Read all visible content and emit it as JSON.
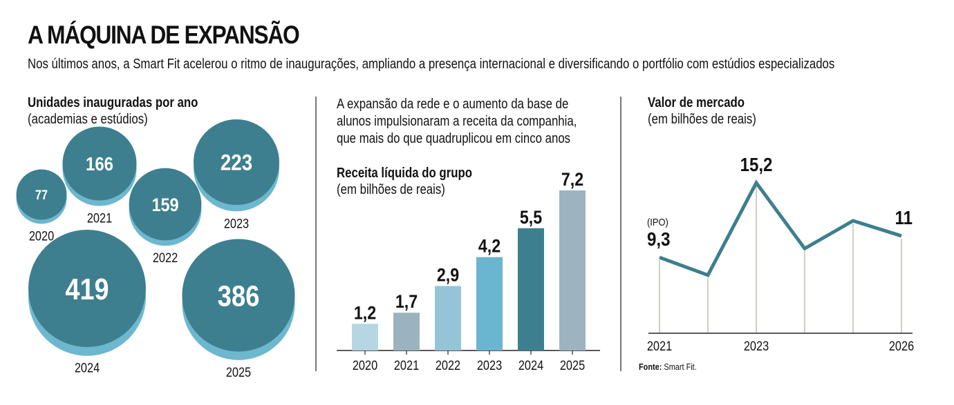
{
  "header": {
    "title": "A MÁQUINA DE EXPANSÃO",
    "subtitle": "Nos últimos anos, a Smart Fit acelerou o ritmo de inaugurações, ampliando a presença internacional e diversificando o portfólio com estúdios especializados"
  },
  "colors": {
    "bubble_front": "#3d7f8e",
    "bubble_shadow": "#6db7cf",
    "line": "#3d7f8e",
    "gridline": "#c9bcb0",
    "axis": "#222222",
    "divider": "#777777"
  },
  "intro_text": [
    "A expansão da rede e o aumento da base de",
    "alunos impulsionaram a receita da companhia,",
    "que mais do que quadruplicou em cinco anos"
  ],
  "source": {
    "label": "Fonte:",
    "text": "Smart Fit."
  },
  "chart_data": [
    {
      "type": "bubble",
      "title": "Unidades inauguradas por ano",
      "subtitle": "(academias e estúdios)",
      "categories": [
        "2020",
        "2021",
        "2022",
        "2023",
        "2024",
        "2025"
      ],
      "values": [
        77,
        166,
        159,
        223,
        419,
        386
      ],
      "labels": [
        "77",
        "166",
        "159",
        "223",
        "419",
        "386"
      ]
    },
    {
      "type": "bar",
      "title": "Receita líquida do grupo",
      "subtitle": "(em bilhões de reais)",
      "categories": [
        "2020",
        "2021",
        "2022",
        "2023",
        "2024",
        "2025"
      ],
      "values": [
        1.2,
        1.7,
        2.9,
        4.2,
        5.5,
        7.2
      ],
      "labels": [
        "1,2",
        "1,7",
        "2,9",
        "4,2",
        "5,5",
        "7,2"
      ],
      "bar_colors": [
        "#b5d6e2",
        "#9bb3bf",
        "#93c5d6",
        "#6ab5cf",
        "#3d7f8e",
        "#9db4c0"
      ],
      "ylim": [
        0,
        7.2
      ],
      "grid": false
    },
    {
      "type": "line",
      "title": "Valor de mercado",
      "subtitle": "(em bilhões de reais)",
      "x": [
        "2021",
        "2022",
        "2023",
        "2024",
        "2025",
        "2026"
      ],
      "values": [
        9.3,
        7.9,
        15.2,
        10.0,
        12.2,
        11.0
      ],
      "tick_labels": [
        "2021",
        "",
        "2023",
        "",
        "",
        "2026"
      ],
      "annotations": [
        {
          "index": 0,
          "note": "(IPO)",
          "label": "9,3"
        },
        {
          "index": 2,
          "label": "15,2"
        },
        {
          "index": 5,
          "label": "11"
        }
      ],
      "ylim": [
        3.3,
        15.2
      ]
    }
  ]
}
